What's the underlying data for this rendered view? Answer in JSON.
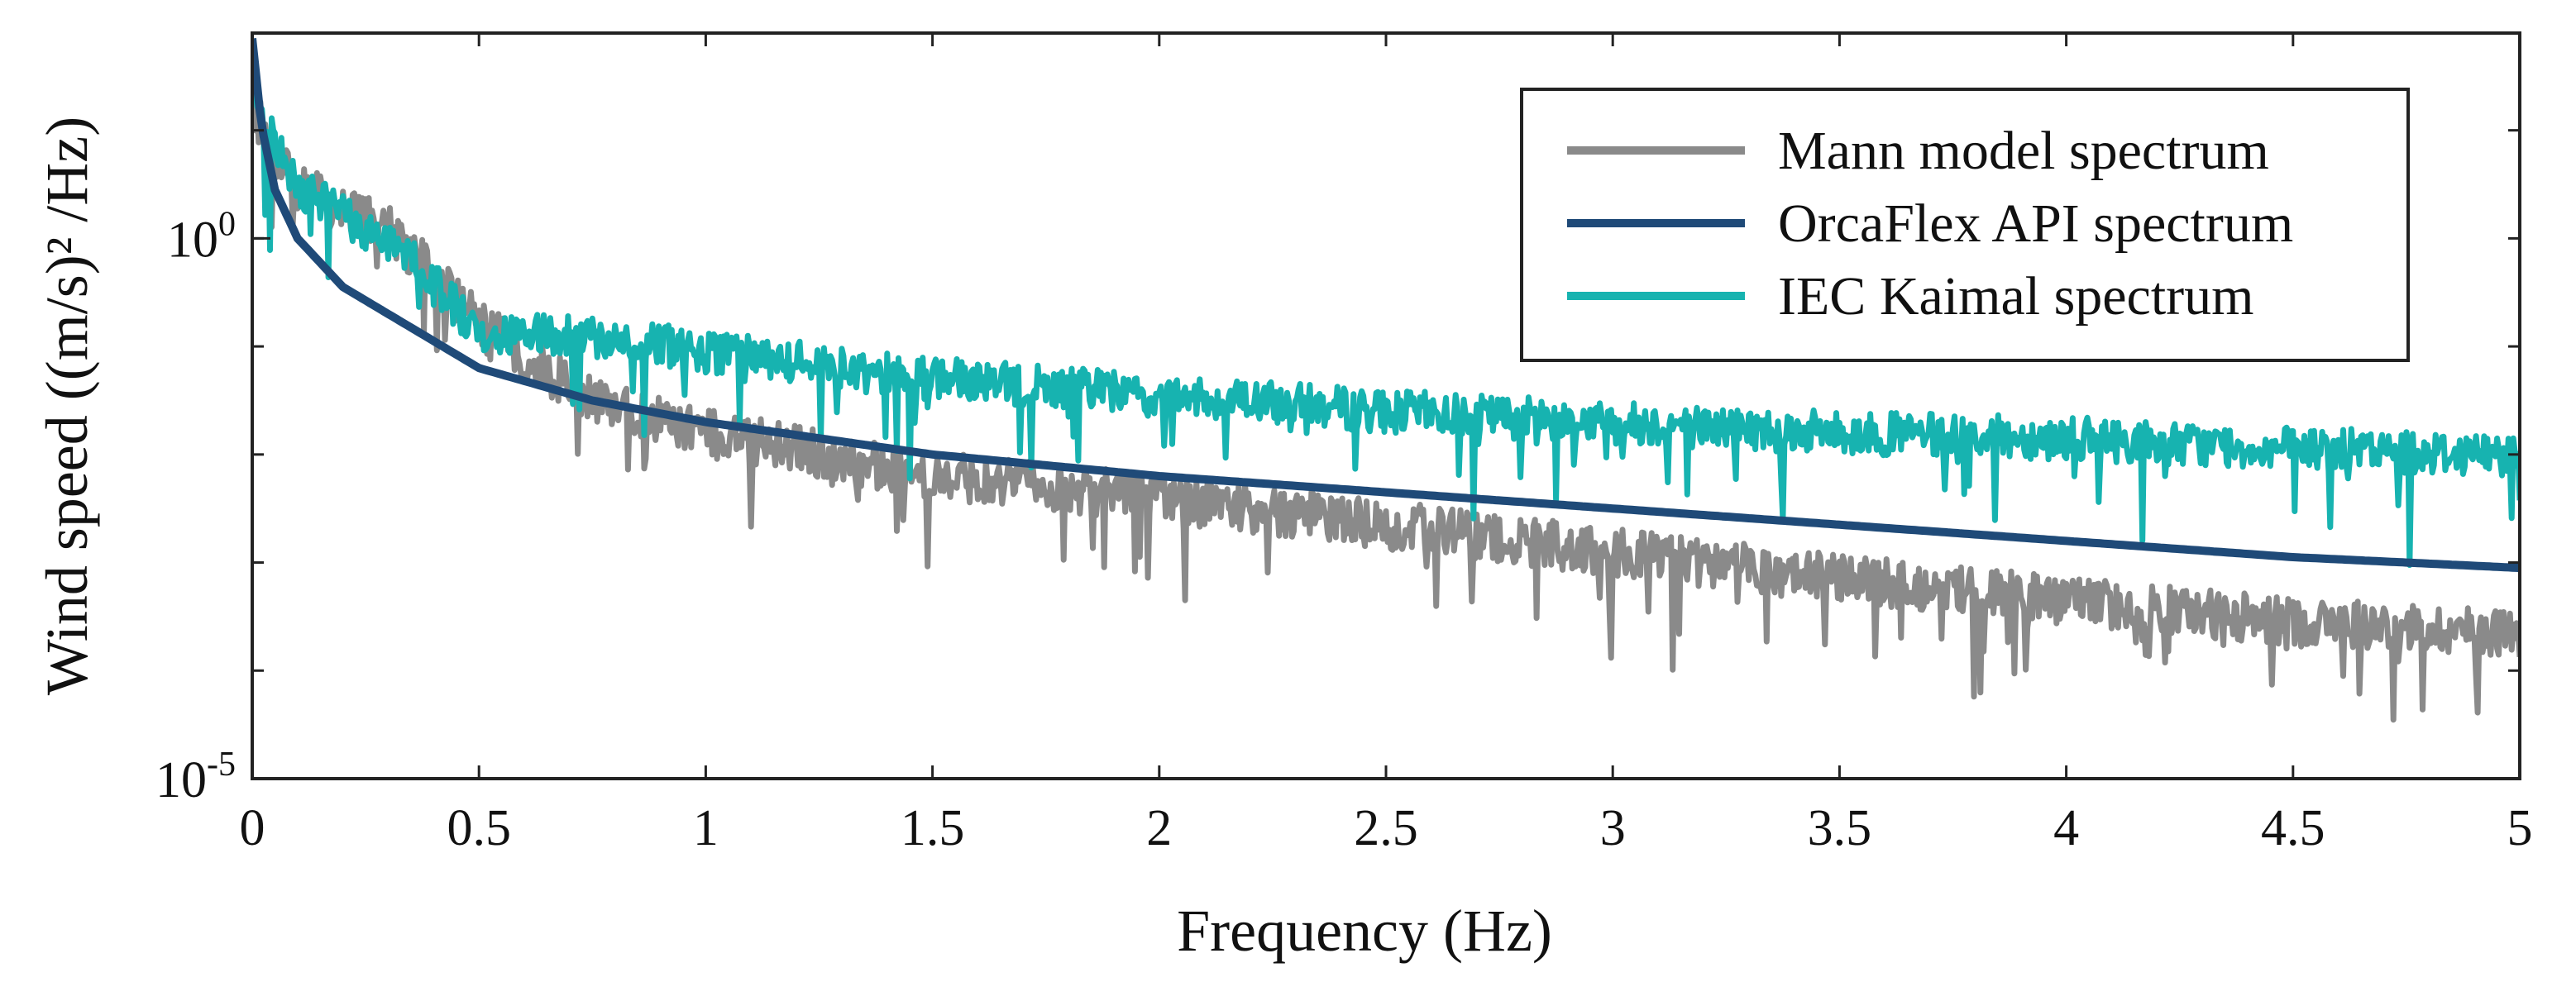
{
  "chart_data": {
    "type": "line",
    "title": "",
    "xlabel": "Frequency (Hz)",
    "ylabel": "Wind speed ((m/s)² /Hz)",
    "xlim": [
      0,
      5
    ],
    "ylim_log10": [
      -5,
      1.9
    ],
    "yscale": "log",
    "x_ticks": [
      {
        "value": 0,
        "label": "0"
      },
      {
        "value": 0.5,
        "label": "0.5"
      },
      {
        "value": 1,
        "label": "1"
      },
      {
        "value": 1.5,
        "label": "1.5"
      },
      {
        "value": 2,
        "label": "2"
      },
      {
        "value": 2.5,
        "label": "2.5"
      },
      {
        "value": 3,
        "label": "3"
      },
      {
        "value": 3.5,
        "label": "3.5"
      },
      {
        "value": 4,
        "label": "4"
      },
      {
        "value": 4.5,
        "label": "4.5"
      },
      {
        "value": 5,
        "label": "5"
      }
    ],
    "y_ticks": [
      {
        "log10": 0,
        "base": "10",
        "exp": "0"
      },
      {
        "log10": -5,
        "base": "10",
        "exp": "-5"
      }
    ],
    "legend_position": "top-right",
    "series": [
      {
        "name": "Mann model spectrum",
        "color": "#8a8a8a",
        "style": "noisy",
        "noise_log10": 0.45,
        "x": [
          0.0,
          0.05,
          0.1,
          0.2,
          0.3,
          0.5,
          0.75,
          1.0,
          1.5,
          2.0,
          2.5,
          3.0,
          3.5,
          4.0,
          4.5,
          5.0
        ],
        "log10_y": [
          1.2,
          0.75,
          0.5,
          0.25,
          0.1,
          -0.8,
          -1.5,
          -1.8,
          -2.2,
          -2.4,
          -2.65,
          -2.9,
          -3.15,
          -3.35,
          -3.55,
          -3.65
        ]
      },
      {
        "name": "OrcaFlex API spectrum",
        "color": "#1f4a78",
        "style": "smooth",
        "x": [
          0.0,
          0.02,
          0.05,
          0.1,
          0.2,
          0.3,
          0.5,
          0.75,
          1.0,
          1.5,
          2.0,
          2.5,
          3.0,
          3.5,
          4.0,
          4.5,
          5.0
        ],
        "log10_y": [
          1.85,
          1.05,
          0.45,
          0.0,
          -0.45,
          -0.7,
          -1.2,
          -1.5,
          -1.7,
          -2.0,
          -2.2,
          -2.35,
          -2.5,
          -2.65,
          -2.8,
          -2.95,
          -3.05
        ]
      },
      {
        "name": "IEC Kaimal spectrum",
        "color": "#17b3b0",
        "style": "noisy",
        "noise_log10": 0.4,
        "x": [
          0.0,
          0.05,
          0.1,
          0.2,
          0.3,
          0.5,
          0.75,
          1.0,
          1.5,
          2.0,
          2.5,
          3.0,
          3.5,
          4.0,
          4.5,
          5.0
        ],
        "log10_y": [
          1.3,
          0.85,
          0.5,
          0.2,
          0.0,
          -0.85,
          -0.9,
          -1.05,
          -1.3,
          -1.45,
          -1.6,
          -1.7,
          -1.8,
          -1.85,
          -1.95,
          -2.0
        ]
      }
    ]
  }
}
